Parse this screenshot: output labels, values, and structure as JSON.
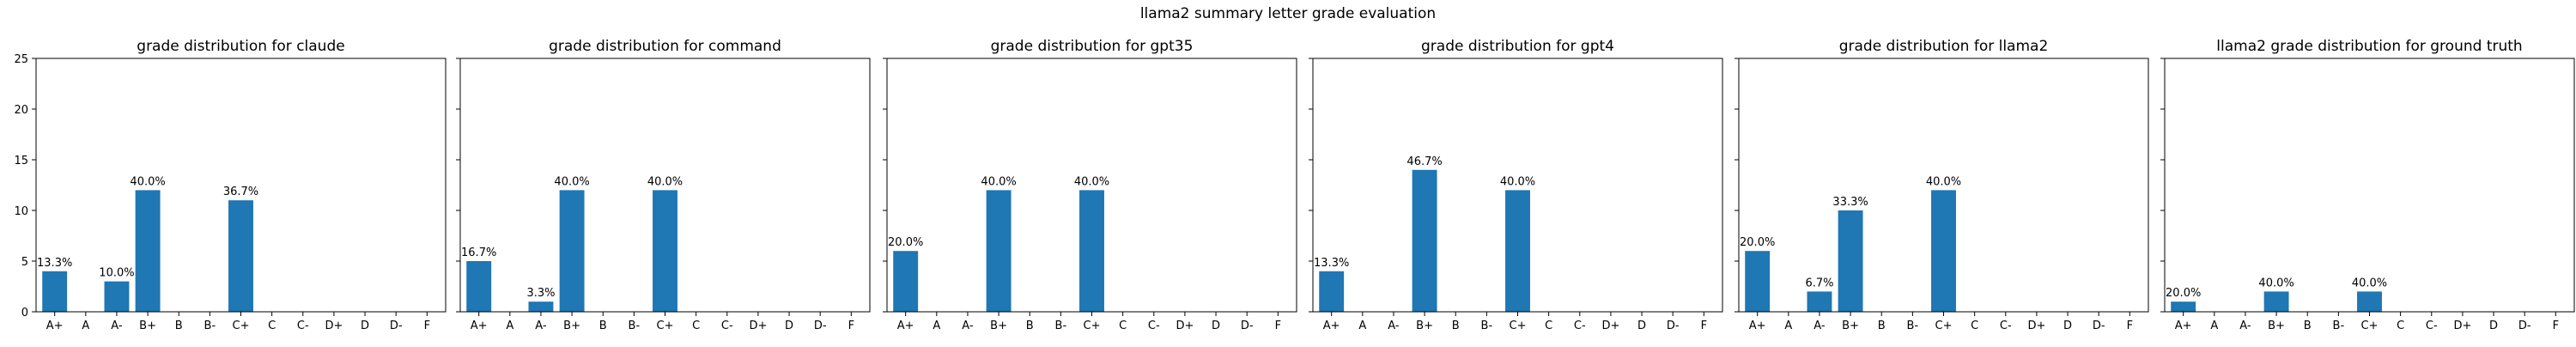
{
  "figure": {
    "suptitle": "llama2 summary letter grade evaluation"
  },
  "colors": {
    "bar": "#1f77b4",
    "axis": "#000000",
    "background": "#ffffff"
  },
  "chart_data": [
    {
      "type": "bar",
      "title": "grade distribution for claude",
      "categories": [
        "A+",
        "A",
        "A-",
        "B+",
        "B",
        "B-",
        "C+",
        "C",
        "C-",
        "D+",
        "D",
        "D-",
        "F"
      ],
      "values": [
        4,
        0,
        3,
        12,
        0,
        0,
        11,
        0,
        0,
        0,
        0,
        0,
        0
      ],
      "data_labels": [
        "13.3%",
        "",
        "10.0%",
        "40.0%",
        "",
        "",
        "36.7%",
        "",
        "",
        "",
        "",
        "",
        ""
      ],
      "ylim": [
        0,
        25
      ],
      "yticks": [
        0,
        5,
        10,
        15,
        20,
        25
      ],
      "grid": false
    },
    {
      "type": "bar",
      "title": "grade distribution for command",
      "categories": [
        "A+",
        "A",
        "A-",
        "B+",
        "B",
        "B-",
        "C+",
        "C",
        "C-",
        "D+",
        "D",
        "D-",
        "F"
      ],
      "values": [
        5,
        0,
        1,
        12,
        0,
        0,
        12,
        0,
        0,
        0,
        0,
        0,
        0
      ],
      "data_labels": [
        "16.7%",
        "",
        "3.3%",
        "40.0%",
        "",
        "",
        "40.0%",
        "",
        "",
        "",
        "",
        "",
        ""
      ],
      "ylim": [
        0,
        25
      ],
      "yticks": [
        0,
        5,
        10,
        15,
        20,
        25
      ],
      "grid": false
    },
    {
      "type": "bar",
      "title": "grade distribution for gpt35",
      "categories": [
        "A+",
        "A",
        "A-",
        "B+",
        "B",
        "B-",
        "C+",
        "C",
        "C-",
        "D+",
        "D",
        "D-",
        "F"
      ],
      "values": [
        6,
        0,
        0,
        12,
        0,
        0,
        12,
        0,
        0,
        0,
        0,
        0,
        0
      ],
      "data_labels": [
        "20.0%",
        "",
        "",
        "40.0%",
        "",
        "",
        "40.0%",
        "",
        "",
        "",
        "",
        "",
        ""
      ],
      "ylim": [
        0,
        25
      ],
      "yticks": [
        0,
        5,
        10,
        15,
        20,
        25
      ],
      "grid": false
    },
    {
      "type": "bar",
      "title": "grade distribution for gpt4",
      "categories": [
        "A+",
        "A",
        "A-",
        "B+",
        "B",
        "B-",
        "C+",
        "C",
        "C-",
        "D+",
        "D",
        "D-",
        "F"
      ],
      "values": [
        4,
        0,
        0,
        14,
        0,
        0,
        12,
        0,
        0,
        0,
        0,
        0,
        0
      ],
      "data_labels": [
        "13.3%",
        "",
        "",
        "46.7%",
        "",
        "",
        "40.0%",
        "",
        "",
        "",
        "",
        "",
        ""
      ],
      "ylim": [
        0,
        25
      ],
      "yticks": [
        0,
        5,
        10,
        15,
        20,
        25
      ],
      "grid": false
    },
    {
      "type": "bar",
      "title": "grade distribution for llama2",
      "categories": [
        "A+",
        "A",
        "A-",
        "B+",
        "B",
        "B-",
        "C+",
        "C",
        "C-",
        "D+",
        "D",
        "D-",
        "F"
      ],
      "values": [
        6,
        0,
        2,
        10,
        0,
        0,
        12,
        0,
        0,
        0,
        0,
        0,
        0
      ],
      "data_labels": [
        "20.0%",
        "",
        "6.7%",
        "33.3%",
        "",
        "",
        "40.0%",
        "",
        "",
        "",
        "",
        "",
        ""
      ],
      "ylim": [
        0,
        25
      ],
      "yticks": [
        0,
        5,
        10,
        15,
        20,
        25
      ],
      "grid": false
    },
    {
      "type": "bar",
      "title": "llama2 grade distribution for ground truth",
      "categories": [
        "A+",
        "A",
        "A-",
        "B+",
        "B",
        "B-",
        "C+",
        "C",
        "C-",
        "D+",
        "D",
        "D-",
        "F"
      ],
      "values": [
        1,
        0,
        0,
        2,
        0,
        0,
        2,
        0,
        0,
        0,
        0,
        0,
        0
      ],
      "data_labels": [
        "20.0%",
        "",
        "",
        "40.0%",
        "",
        "",
        "40.0%",
        "",
        "",
        "",
        "",
        "",
        ""
      ],
      "ylim": [
        0,
        25
      ],
      "yticks": [
        0,
        5,
        10,
        15,
        20,
        25
      ],
      "grid": false
    }
  ]
}
